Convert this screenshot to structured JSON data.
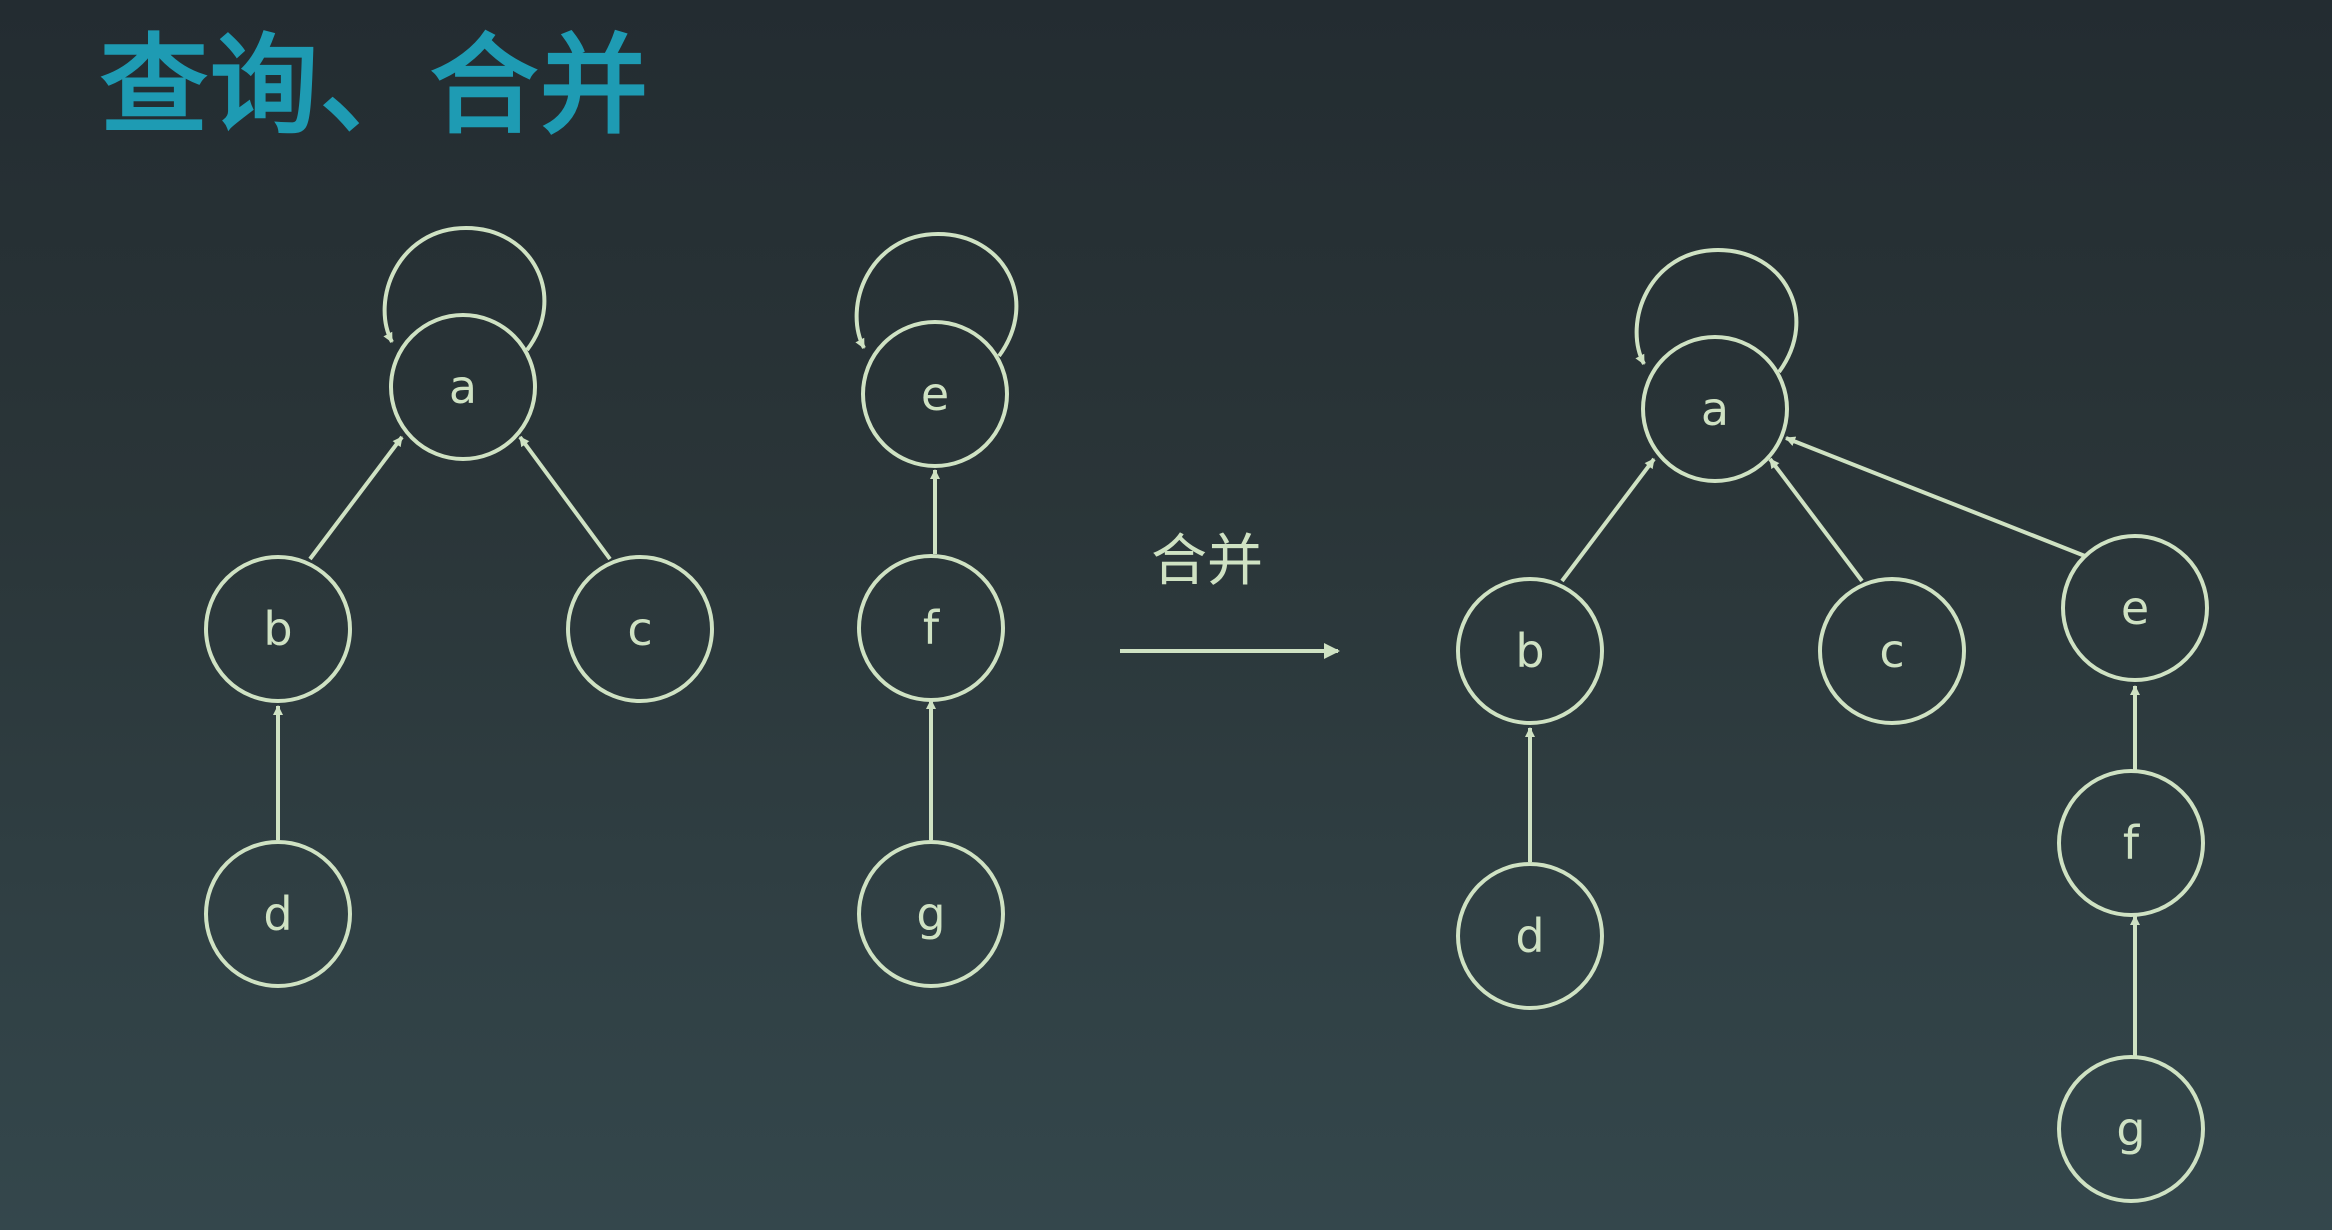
{
  "title": "查询、合并",
  "merge_label": "合并",
  "colors": {
    "title": "#1e9bb3",
    "stroke": "#cfe2c3",
    "background_top": "#232c31",
    "background_bottom": "#34474c"
  },
  "before": {
    "tree1": {
      "a": "a",
      "b": "b",
      "c": "c",
      "d": "d"
    },
    "tree2": {
      "e": "e",
      "f": "f",
      "g": "g"
    }
  },
  "after": {
    "a": "a",
    "b": "b",
    "c": "c",
    "d": "d",
    "e": "e",
    "f": "f",
    "g": "g"
  }
}
